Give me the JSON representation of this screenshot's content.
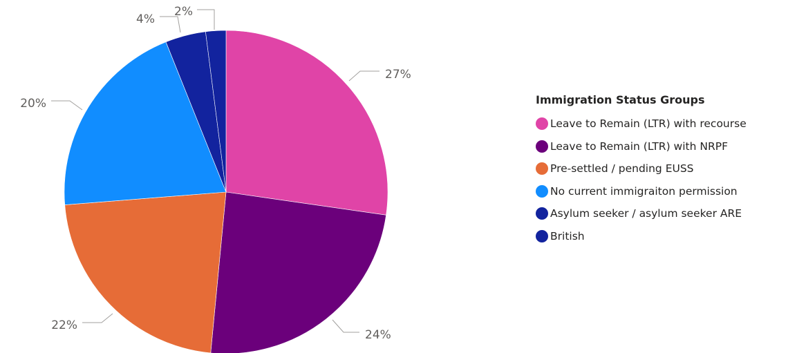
{
  "chart_data": {
    "type": "pie",
    "legend_title": "Immigration Status Groups",
    "legend_position": "right",
    "series": [
      {
        "name": "Leave to Remain (LTR) with recourse",
        "value": 27,
        "label": "27%",
        "color": "#E044A7"
      },
      {
        "name": "Leave to Remain (LTR) with NRPF",
        "value": 24,
        "label": "24%",
        "color": "#6B007B"
      },
      {
        "name": "Pre-settled / pending EUSS",
        "value": 22,
        "label": "22%",
        "color": "#E66C37"
      },
      {
        "name": "No current immigraiton permission",
        "value": 20,
        "label": "20%",
        "color": "#118DFF"
      },
      {
        "name": "Asylum seeker / asylum seeker ARE",
        "value": 4,
        "label": "4%",
        "color": "#12239E"
      },
      {
        "name": "British",
        "value": 2,
        "label": "2%",
        "color": "#12239E"
      }
    ]
  }
}
